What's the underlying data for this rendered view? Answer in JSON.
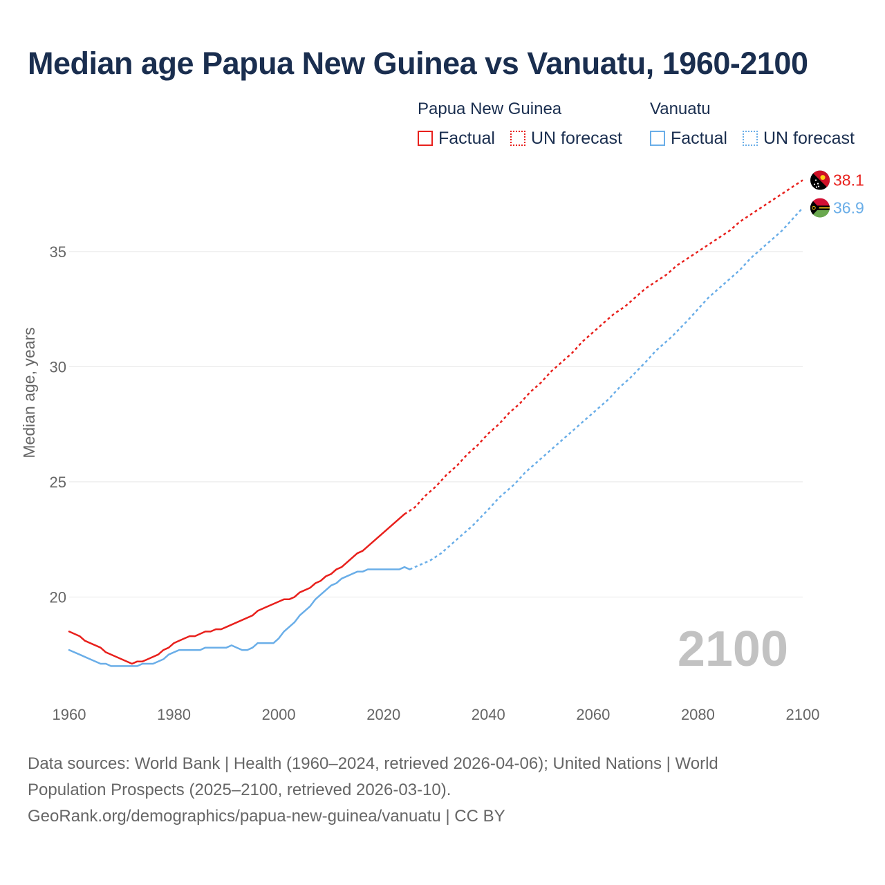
{
  "title": "Median age Papua New Guinea vs Vanuatu, 1960-2100",
  "legend": {
    "groups": [
      {
        "name": "Papua New Guinea",
        "color": "#e8201c",
        "factual_label": "Factual",
        "forecast_label": "UN forecast"
      },
      {
        "name": "Vanuatu",
        "color": "#6aaee8",
        "factual_label": "Factual",
        "forecast_label": "UN forecast"
      }
    ]
  },
  "chart_data": {
    "type": "line",
    "title": "Median age Papua New Guinea vs Vanuatu, 1960-2100",
    "xlabel": "",
    "ylabel": "Median age, years",
    "xlim": [
      1960,
      2100
    ],
    "ylim": [
      15.6,
      38.9
    ],
    "xticks": [
      1960,
      1980,
      2000,
      2020,
      2040,
      2060,
      2080,
      2100
    ],
    "yticks": [
      20,
      25,
      30,
      35
    ],
    "grid": "horizontal",
    "year_watermark": "2100",
    "forecast_start": 2025,
    "series": [
      {
        "name": "Papua New Guinea",
        "color": "#e8201c",
        "end_label": "38.1",
        "factual": [
          [
            1960,
            18.5
          ],
          [
            1962,
            18.3
          ],
          [
            1963,
            18.1
          ],
          [
            1966,
            17.8
          ],
          [
            1967,
            17.6
          ],
          [
            1970,
            17.3
          ],
          [
            1972,
            17.1
          ],
          [
            1973,
            17.2
          ],
          [
            1974,
            17.2
          ],
          [
            1975,
            17.3
          ],
          [
            1977,
            17.5
          ],
          [
            1978,
            17.7
          ],
          [
            1979,
            17.8
          ],
          [
            1980,
            18.0
          ],
          [
            1982,
            18.2
          ],
          [
            1983,
            18.3
          ],
          [
            1984,
            18.3
          ],
          [
            1986,
            18.5
          ],
          [
            1987,
            18.5
          ],
          [
            1988,
            18.6
          ],
          [
            1989,
            18.6
          ],
          [
            1990,
            18.7
          ],
          [
            1995,
            19.2
          ],
          [
            1996,
            19.4
          ],
          [
            2000,
            19.8
          ],
          [
            2001,
            19.9
          ],
          [
            2002,
            19.9
          ],
          [
            2003,
            20.0
          ],
          [
            2004,
            20.2
          ],
          [
            2006,
            20.4
          ],
          [
            2007,
            20.6
          ],
          [
            2008,
            20.7
          ],
          [
            2009,
            20.9
          ],
          [
            2010,
            21.0
          ],
          [
            2011,
            21.2
          ],
          [
            2012,
            21.3
          ],
          [
            2015,
            21.9
          ],
          [
            2016,
            22.0
          ],
          [
            2024,
            23.6
          ]
        ],
        "forecast": [
          [
            2024,
            23.6
          ],
          [
            2026,
            23.9
          ],
          [
            2028,
            24.4
          ],
          [
            2030,
            24.8
          ],
          [
            2032,
            25.3
          ],
          [
            2034,
            25.7
          ],
          [
            2036,
            26.2
          ],
          [
            2038,
            26.6
          ],
          [
            2040,
            27.1
          ],
          [
            2042,
            27.5
          ],
          [
            2044,
            28.0
          ],
          [
            2046,
            28.4
          ],
          [
            2048,
            28.9
          ],
          [
            2050,
            29.3
          ],
          [
            2052,
            29.8
          ],
          [
            2054,
            30.2
          ],
          [
            2056,
            30.6
          ],
          [
            2058,
            31.1
          ],
          [
            2060,
            31.5
          ],
          [
            2062,
            31.9
          ],
          [
            2064,
            32.3
          ],
          [
            2066,
            32.6
          ],
          [
            2068,
            33.0
          ],
          [
            2070,
            33.4
          ],
          [
            2072,
            33.7
          ],
          [
            2074,
            34.0
          ],
          [
            2076,
            34.4
          ],
          [
            2078,
            34.7
          ],
          [
            2080,
            35.0
          ],
          [
            2082,
            35.3
          ],
          [
            2084,
            35.6
          ],
          [
            2086,
            35.9
          ],
          [
            2088,
            36.3
          ],
          [
            2090,
            36.6
          ],
          [
            2092,
            36.9
          ],
          [
            2094,
            37.2
          ],
          [
            2096,
            37.5
          ],
          [
            2098,
            37.8
          ],
          [
            2100,
            38.1
          ]
        ]
      },
      {
        "name": "Vanuatu",
        "color": "#6aaee8",
        "end_label": "36.9",
        "factual": [
          [
            1960,
            17.7
          ],
          [
            1962,
            17.5
          ],
          [
            1964,
            17.3
          ],
          [
            1966,
            17.1
          ],
          [
            1967,
            17.1
          ],
          [
            1968,
            17.0
          ],
          [
            1973,
            17.0
          ],
          [
            1974,
            17.1
          ],
          [
            1976,
            17.1
          ],
          [
            1978,
            17.3
          ],
          [
            1979,
            17.5
          ],
          [
            1981,
            17.7
          ],
          [
            1985,
            17.7
          ],
          [
            1986,
            17.8
          ],
          [
            1990,
            17.8
          ],
          [
            1991,
            17.9
          ],
          [
            1993,
            17.7
          ],
          [
            1994,
            17.7
          ],
          [
            1995,
            17.8
          ],
          [
            1996,
            18.0
          ],
          [
            1999,
            18.0
          ],
          [
            2000,
            18.2
          ],
          [
            2001,
            18.5
          ],
          [
            2003,
            18.9
          ],
          [
            2004,
            19.2
          ],
          [
            2006,
            19.6
          ],
          [
            2007,
            19.9
          ],
          [
            2008,
            20.1
          ],
          [
            2010,
            20.5
          ],
          [
            2011,
            20.6
          ],
          [
            2012,
            20.8
          ],
          [
            2015,
            21.1
          ],
          [
            2016,
            21.1
          ],
          [
            2017,
            21.2
          ],
          [
            2023,
            21.2
          ],
          [
            2024,
            21.3
          ],
          [
            2025,
            21.2
          ]
        ],
        "forecast": [
          [
            2025,
            21.2
          ],
          [
            2027,
            21.4
          ],
          [
            2029,
            21.6
          ],
          [
            2031,
            21.9
          ],
          [
            2033,
            22.3
          ],
          [
            2035,
            22.7
          ],
          [
            2037,
            23.1
          ],
          [
            2040,
            23.8
          ],
          [
            2042,
            24.3
          ],
          [
            2045,
            24.9
          ],
          [
            2047,
            25.4
          ],
          [
            2050,
            26.0
          ],
          [
            2052,
            26.4
          ],
          [
            2055,
            27.0
          ],
          [
            2058,
            27.6
          ],
          [
            2060,
            28.0
          ],
          [
            2063,
            28.6
          ],
          [
            2065,
            29.1
          ],
          [
            2067,
            29.5
          ],
          [
            2070,
            30.2
          ],
          [
            2072,
            30.7
          ],
          [
            2075,
            31.3
          ],
          [
            2078,
            32.0
          ],
          [
            2080,
            32.5
          ],
          [
            2082,
            33.0
          ],
          [
            2085,
            33.6
          ],
          [
            2088,
            34.2
          ],
          [
            2090,
            34.7
          ],
          [
            2093,
            35.3
          ],
          [
            2096,
            35.9
          ],
          [
            2098,
            36.4
          ],
          [
            2100,
            36.9
          ]
        ]
      }
    ]
  },
  "footer": {
    "line1": "Data sources: World Bank | Health (1960–2024, retrieved 2026-04-06); United Nations | World",
    "line2": "Population Prospects (2025–2100, retrieved 2026-03-10).",
    "line3": "GeoRank.org/demographics/papua-new-guinea/vanuatu | CC BY"
  }
}
